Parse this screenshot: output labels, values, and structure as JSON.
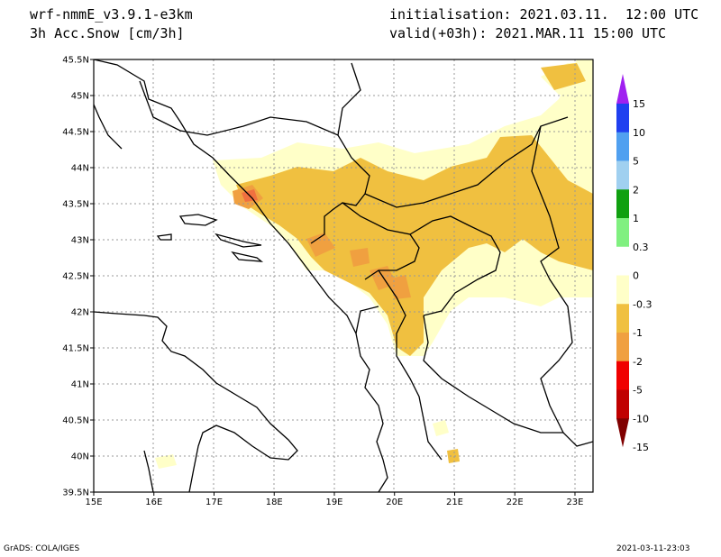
{
  "header": {
    "model": "wrf-nmmE_v3.9.1-e3km",
    "variable": "3h Acc.Snow [cm/3h]",
    "init": "initialisation: 2021.03.11.  12:00 UTC",
    "valid": "valid(+03h): 2021.MAR.11 15:00 UTC"
  },
  "footer": {
    "left": "GrADS: COLA/IGES",
    "right": "2021-03-11-23:03"
  },
  "axes": {
    "lon_ticks": [
      "15E",
      "16E",
      "17E",
      "18E",
      "19E",
      "20E",
      "21E",
      "22E",
      "23E"
    ],
    "lat_ticks": [
      "45.5N",
      "45N",
      "44.5N",
      "44N",
      "43.5N",
      "43N",
      "42.5N",
      "42N",
      "41.5N",
      "41N",
      "40.5N",
      "40N",
      "39.5N"
    ],
    "lon_range": [
      15,
      23.3
    ],
    "lat_range": [
      39.5,
      45.5
    ],
    "grid": true
  },
  "legend": {
    "labels": [
      "15",
      "10",
      "5",
      "2",
      "1",
      "0.3",
      "0",
      "-0.3",
      "-1",
      "-2",
      "-5",
      "-10",
      "-15"
    ],
    "colors": [
      "#a020f0",
      "#2040f0",
      "#50a0f0",
      "#a0d0f0",
      "#10a010",
      "#80f080",
      "#ffffff",
      "#ffffc8",
      "#f0c040",
      "#f0a040",
      "#f00000",
      "#c00000",
      "#800000"
    ]
  },
  "colors": {
    "snow_light": "#ffffc8",
    "snow_mid": "#f0c040",
    "snow_heavy": "#f0a040",
    "snow_max": "#f07040"
  }
}
